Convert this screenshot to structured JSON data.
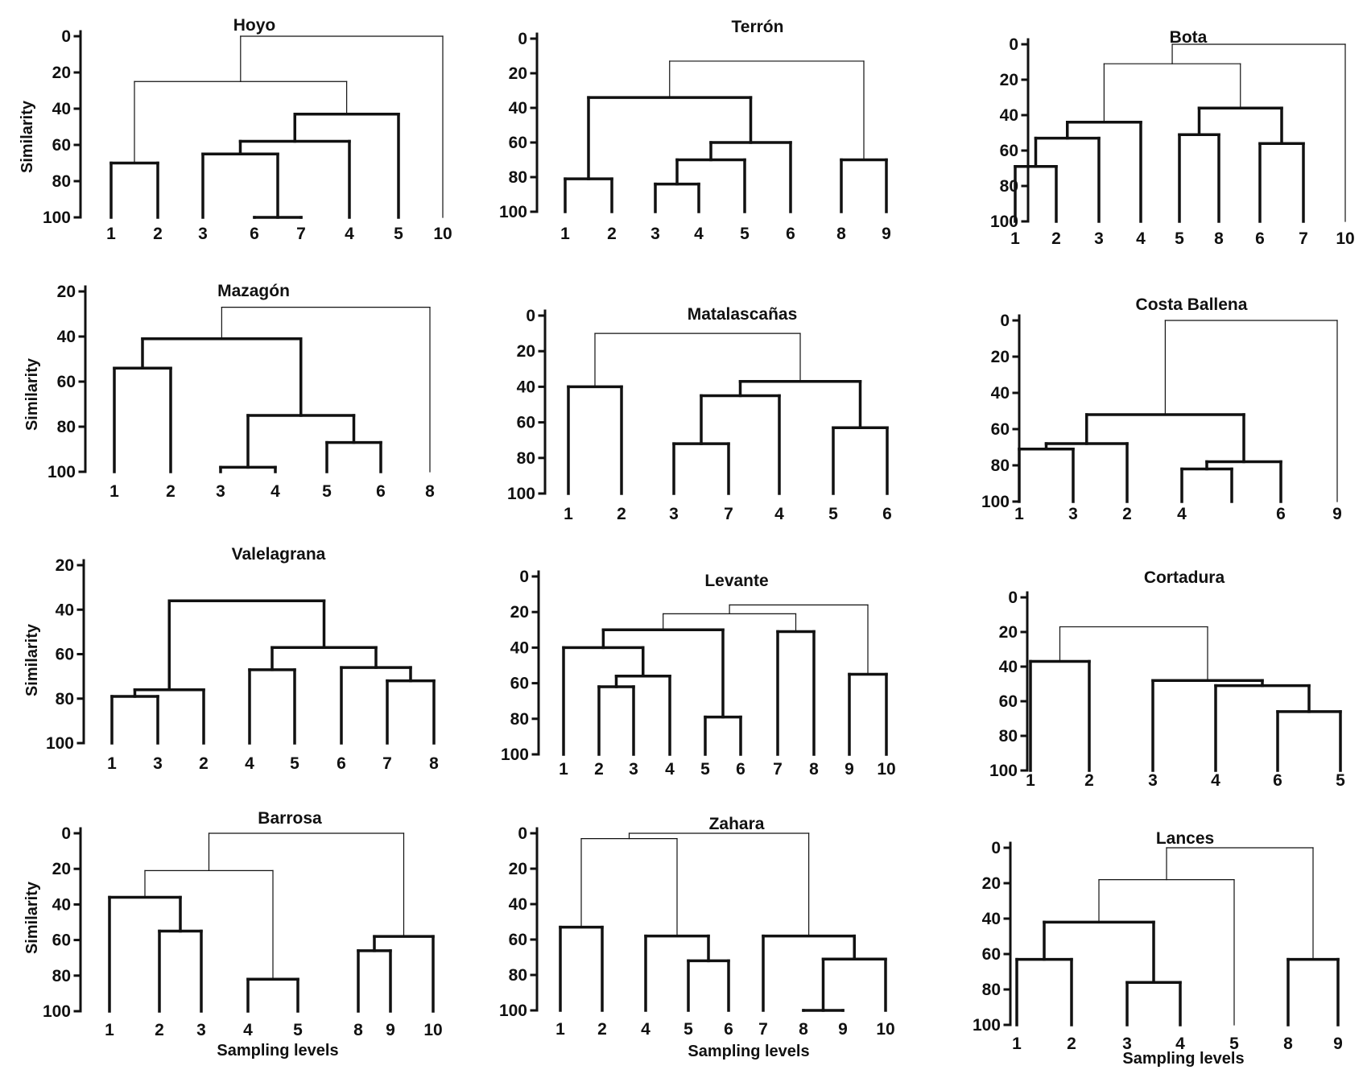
{
  "chart_data": [
    {
      "type": "dendrogram",
      "title": "Hoyo",
      "ylabel": "Similarity",
      "xlabel": "",
      "ylim": [
        0,
        100
      ],
      "yticks": [
        "0",
        "20",
        "40",
        "60",
        "80",
        "100"
      ],
      "leaves": [
        "1",
        "2",
        "3",
        "6",
        "7",
        "4",
        "5",
        "10"
      ],
      "merges": [
        {
          "left": "6",
          "right": "7",
          "similarity": 100
        },
        {
          "left": "1",
          "right": "2",
          "similarity": 70
        },
        {
          "left": "3",
          "right": "6-7",
          "similarity": 65
        },
        {
          "left": "3-6-7",
          "right": "4",
          "similarity": 58
        },
        {
          "left": "3-6-7-4",
          "right": "5",
          "similarity": 43
        },
        {
          "left": "1-2",
          "right": "3-6-7-4-5",
          "similarity": 25
        },
        {
          "left": "1-2-3-6-7-4-5",
          "right": "10",
          "similarity": 0
        }
      ]
    },
    {
      "type": "dendrogram",
      "title": "Terrón",
      "ylabel": "",
      "xlabel": "",
      "ylim": [
        0,
        100
      ],
      "yticks": [
        "0",
        "20",
        "40",
        "60",
        "80",
        "100"
      ],
      "leaves": [
        "1",
        "2",
        "3",
        "4",
        "5",
        "6",
        "8",
        "9"
      ],
      "merges": [
        {
          "left": "3",
          "right": "4",
          "similarity": 84
        },
        {
          "left": "1",
          "right": "2",
          "similarity": 81
        },
        {
          "left": "3-4",
          "right": "5",
          "similarity": 70
        },
        {
          "left": "8",
          "right": "9",
          "similarity": 70
        },
        {
          "left": "3-4-5",
          "right": "6",
          "similarity": 60
        },
        {
          "left": "1-2",
          "right": "3-4-5-6",
          "similarity": 34
        },
        {
          "left": "1-2-3-4-5-6",
          "right": "8-9",
          "similarity": 13
        }
      ]
    },
    {
      "type": "dendrogram",
      "title": "Bota",
      "ylabel": "",
      "xlabel": "",
      "ylim": [
        0,
        100
      ],
      "yticks": [
        "0",
        "20",
        "40",
        "60",
        "80",
        "100"
      ],
      "leaves": [
        "1",
        "2",
        "3",
        "4",
        "5",
        "8",
        "6",
        "7",
        "10"
      ],
      "merges": [
        {
          "left": "1",
          "right": "2",
          "similarity": 69
        },
        {
          "left": "6",
          "right": "7",
          "similarity": 56
        },
        {
          "left": "1-2",
          "right": "3",
          "similarity": 53
        },
        {
          "left": "5",
          "right": "8",
          "similarity": 51
        },
        {
          "left": "1-2-3",
          "right": "4",
          "similarity": 44
        },
        {
          "left": "5-8",
          "right": "6-7",
          "similarity": 36
        },
        {
          "left": "1-2-3-4",
          "right": "5-8-6-7",
          "similarity": 11
        },
        {
          "left": "1-2-3-4-5-8-6-7",
          "right": "10",
          "similarity": 0
        }
      ]
    },
    {
      "type": "dendrogram",
      "title": "Mazagón",
      "ylabel": "Similarity",
      "xlabel": "",
      "ylim": [
        20,
        100
      ],
      "yticks": [
        "20",
        "40",
        "60",
        "80",
        "100"
      ],
      "leaves": [
        "1",
        "2",
        "3",
        "4",
        "5",
        "6",
        "8"
      ],
      "merges": [
        {
          "left": "3",
          "right": "4",
          "similarity": 98
        },
        {
          "left": "5",
          "right": "6",
          "similarity": 87
        },
        {
          "left": "3-4",
          "right": "5-6",
          "similarity": 75
        },
        {
          "left": "1",
          "right": "2",
          "similarity": 54
        },
        {
          "left": "1-2",
          "right": "3-4-5-6",
          "similarity": 41
        },
        {
          "left": "1-2-3-4-5-6",
          "right": "8",
          "similarity": 27
        }
      ]
    },
    {
      "type": "dendrogram",
      "title": "Matalascañas",
      "ylabel": "",
      "xlabel": "",
      "ylim": [
        0,
        100
      ],
      "yticks": [
        "0",
        "20",
        "40",
        "60",
        "80",
        "100"
      ],
      "leaves": [
        "1",
        "2",
        "3",
        "7",
        "4",
        "5",
        "6"
      ],
      "merges": [
        {
          "left": "3",
          "right": "7",
          "similarity": 72
        },
        {
          "left": "5",
          "right": "6",
          "similarity": 63
        },
        {
          "left": "3-7",
          "right": "4",
          "similarity": 45
        },
        {
          "left": "1",
          "right": "2",
          "similarity": 40
        },
        {
          "left": "3-7-4",
          "right": "5-6",
          "similarity": 37
        },
        {
          "left": "1-2",
          "right": "3-7-4-5-6",
          "similarity": 10
        }
      ]
    },
    {
      "type": "dendrogram",
      "title": "Costa Ballena",
      "ylabel": "",
      "xlabel": "",
      "ylim": [
        0,
        100
      ],
      "yticks": [
        "0",
        "20",
        "40",
        "60",
        "80",
        "100"
      ],
      "leaves": [
        "1",
        "3",
        "2",
        "4",
        "",
        "6",
        "9"
      ],
      "merges": [
        {
          "left": "4",
          "right": "",
          "similarity": 82
        },
        {
          "left": "4-",
          "right": "6",
          "similarity": 78
        },
        {
          "left": "1",
          "right": "3",
          "similarity": 71
        },
        {
          "left": "1-3",
          "right": "2",
          "similarity": 68
        },
        {
          "left": "1-3-2",
          "right": "4--6",
          "similarity": 52
        },
        {
          "left": "1-3-2-4--6",
          "right": "9",
          "similarity": 0
        }
      ]
    },
    {
      "type": "dendrogram",
      "title": "Valelagrana",
      "ylabel": "Similarity",
      "xlabel": "",
      "ylim": [
        20,
        100
      ],
      "yticks": [
        "20",
        "40",
        "60",
        "80",
        "100"
      ],
      "leaves": [
        "1",
        "3",
        "2",
        "4",
        "5",
        "6",
        "7",
        "8"
      ],
      "merges": [
        {
          "left": "1",
          "right": "3",
          "similarity": 79
        },
        {
          "left": "1-3",
          "right": "2",
          "similarity": 76
        },
        {
          "left": "7",
          "right": "8",
          "similarity": 72
        },
        {
          "left": "4",
          "right": "5",
          "similarity": 67
        },
        {
          "left": "6",
          "right": "7-8",
          "similarity": 66
        },
        {
          "left": "4-5",
          "right": "6-7-8",
          "similarity": 57
        },
        {
          "left": "1-3-2",
          "right": "4-5-6-7-8",
          "similarity": 36
        }
      ]
    },
    {
      "type": "dendrogram",
      "title": "Levante",
      "ylabel": "",
      "xlabel": "",
      "ylim": [
        0,
        100
      ],
      "yticks": [
        "0",
        "20",
        "40",
        "60",
        "80",
        "100"
      ],
      "leaves": [
        "1",
        "2",
        "3",
        "4",
        "5",
        "6",
        "7",
        "8",
        "9",
        "10"
      ],
      "merges": [
        {
          "left": "5",
          "right": "6",
          "similarity": 79
        },
        {
          "left": "2",
          "right": "3",
          "similarity": 62
        },
        {
          "left": "2-3",
          "right": "4",
          "similarity": 56
        },
        {
          "left": "9",
          "right": "10",
          "similarity": 55
        },
        {
          "left": "1",
          "right": "2-3-4",
          "similarity": 40
        },
        {
          "left": "7",
          "right": "8",
          "similarity": 31
        },
        {
          "left": "1-2-3-4",
          "right": "5-6",
          "similarity": 30
        },
        {
          "left": "1-2-3-4-5-6",
          "right": "7-8",
          "similarity": 21
        },
        {
          "left": "1-2-3-4-5-6-7-8",
          "right": "9-10",
          "similarity": 16
        }
      ]
    },
    {
      "type": "dendrogram",
      "title": "Cortadura",
      "ylabel": "",
      "xlabel": "",
      "ylim": [
        0,
        100
      ],
      "yticks": [
        "0",
        "20",
        "40",
        "60",
        "80",
        "100"
      ],
      "leaves": [
        "1",
        "2",
        "3",
        "4",
        "6",
        "5"
      ],
      "merges": [
        {
          "left": "6",
          "right": "5",
          "similarity": 66
        },
        {
          "left": "4",
          "right": "6-5",
          "similarity": 51
        },
        {
          "left": "3",
          "right": "4-6-5",
          "similarity": 48
        },
        {
          "left": "1",
          "right": "2",
          "similarity": 37
        },
        {
          "left": "1-2",
          "right": "3-4-6-5",
          "similarity": 17
        }
      ]
    },
    {
      "type": "dendrogram",
      "title": "Barrosa",
      "ylabel": "Similarity",
      "xlabel": "Sampling levels",
      "ylim": [
        0,
        100
      ],
      "yticks": [
        "0",
        "20",
        "40",
        "60",
        "80",
        "100"
      ],
      "leaves": [
        "1",
        "2",
        "3",
        "4",
        "5",
        "8",
        "9",
        "10"
      ],
      "merges": [
        {
          "left": "4",
          "right": "5",
          "similarity": 82
        },
        {
          "left": "8",
          "right": "9",
          "similarity": 66
        },
        {
          "left": "8-9",
          "right": "10",
          "similarity": 58
        },
        {
          "left": "2",
          "right": "3",
          "similarity": 55
        },
        {
          "left": "1",
          "right": "2-3",
          "similarity": 36
        },
        {
          "left": "1-2-3",
          "right": "4-5",
          "similarity": 21
        },
        {
          "left": "1-2-3-4-5",
          "right": "8-9-10",
          "similarity": 0
        }
      ]
    },
    {
      "type": "dendrogram",
      "title": "Zahara",
      "ylabel": "",
      "xlabel": "Sampling levels",
      "ylim": [
        0,
        100
      ],
      "yticks": [
        "0",
        "20",
        "40",
        "60",
        "80",
        "100"
      ],
      "leaves": [
        "1",
        "2",
        "4",
        "5",
        "6",
        "7",
        "8",
        "9",
        "10"
      ],
      "merges": [
        {
          "left": "8",
          "right": "9",
          "similarity": 100
        },
        {
          "left": "5",
          "right": "6",
          "similarity": 72
        },
        {
          "left": "8-9",
          "right": "10",
          "similarity": 71
        },
        {
          "left": "4",
          "right": "5-6",
          "similarity": 58
        },
        {
          "left": "7",
          "right": "8-9-10",
          "similarity": 58
        },
        {
          "left": "1",
          "right": "2",
          "similarity": 53
        },
        {
          "left": "1-2",
          "right": "4-5-6",
          "similarity": 3
        },
        {
          "left": "1-2-4-5-6",
          "right": "7-8-9-10",
          "similarity": 0
        }
      ]
    },
    {
      "type": "dendrogram",
      "title": "Lances",
      "ylabel": "",
      "xlabel": "Sampling levels",
      "ylim": [
        0,
        100
      ],
      "yticks": [
        "0",
        "20",
        "40",
        "60",
        "80",
        "100"
      ],
      "leaves": [
        "1",
        "2",
        "3",
        "4",
        "5",
        "8",
        "9"
      ],
      "merges": [
        {
          "left": "3",
          "right": "4",
          "similarity": 76
        },
        {
          "left": "1",
          "right": "2",
          "similarity": 63
        },
        {
          "left": "8",
          "right": "9",
          "similarity": 63
        },
        {
          "left": "1-2",
          "right": "3-4",
          "similarity": 42
        },
        {
          "left": "1-2-3-4",
          "right": "5",
          "similarity": 18
        },
        {
          "left": "1-2-3-4-5",
          "right": "8-9",
          "similarity": 0
        }
      ]
    }
  ]
}
